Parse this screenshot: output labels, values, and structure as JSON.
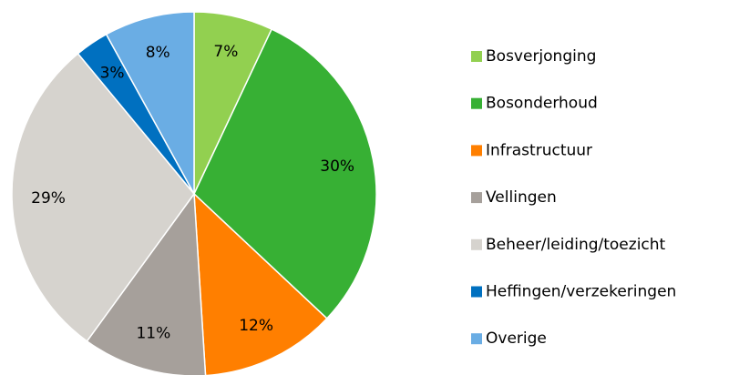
{
  "chart_data": {
    "type": "pie",
    "categories": [
      "Bosverjonging",
      "Bosonderhoud",
      "Infrastructuur",
      "Vellingen",
      "Beheer/leiding/toezicht",
      "Heffingen/verzekeringen",
      "Overige"
    ],
    "values": [
      7,
      30,
      12,
      11,
      29,
      3,
      8
    ],
    "value_labels": [
      "7%",
      "30%",
      "12%",
      "11%",
      "29%",
      "3%",
      "8%"
    ],
    "colors": [
      "#92d050",
      "#37b034",
      "#ff7f00",
      "#a6a09b",
      "#d6d3ce",
      "#0070c0",
      "#6aade4"
    ],
    "legend": "right"
  }
}
